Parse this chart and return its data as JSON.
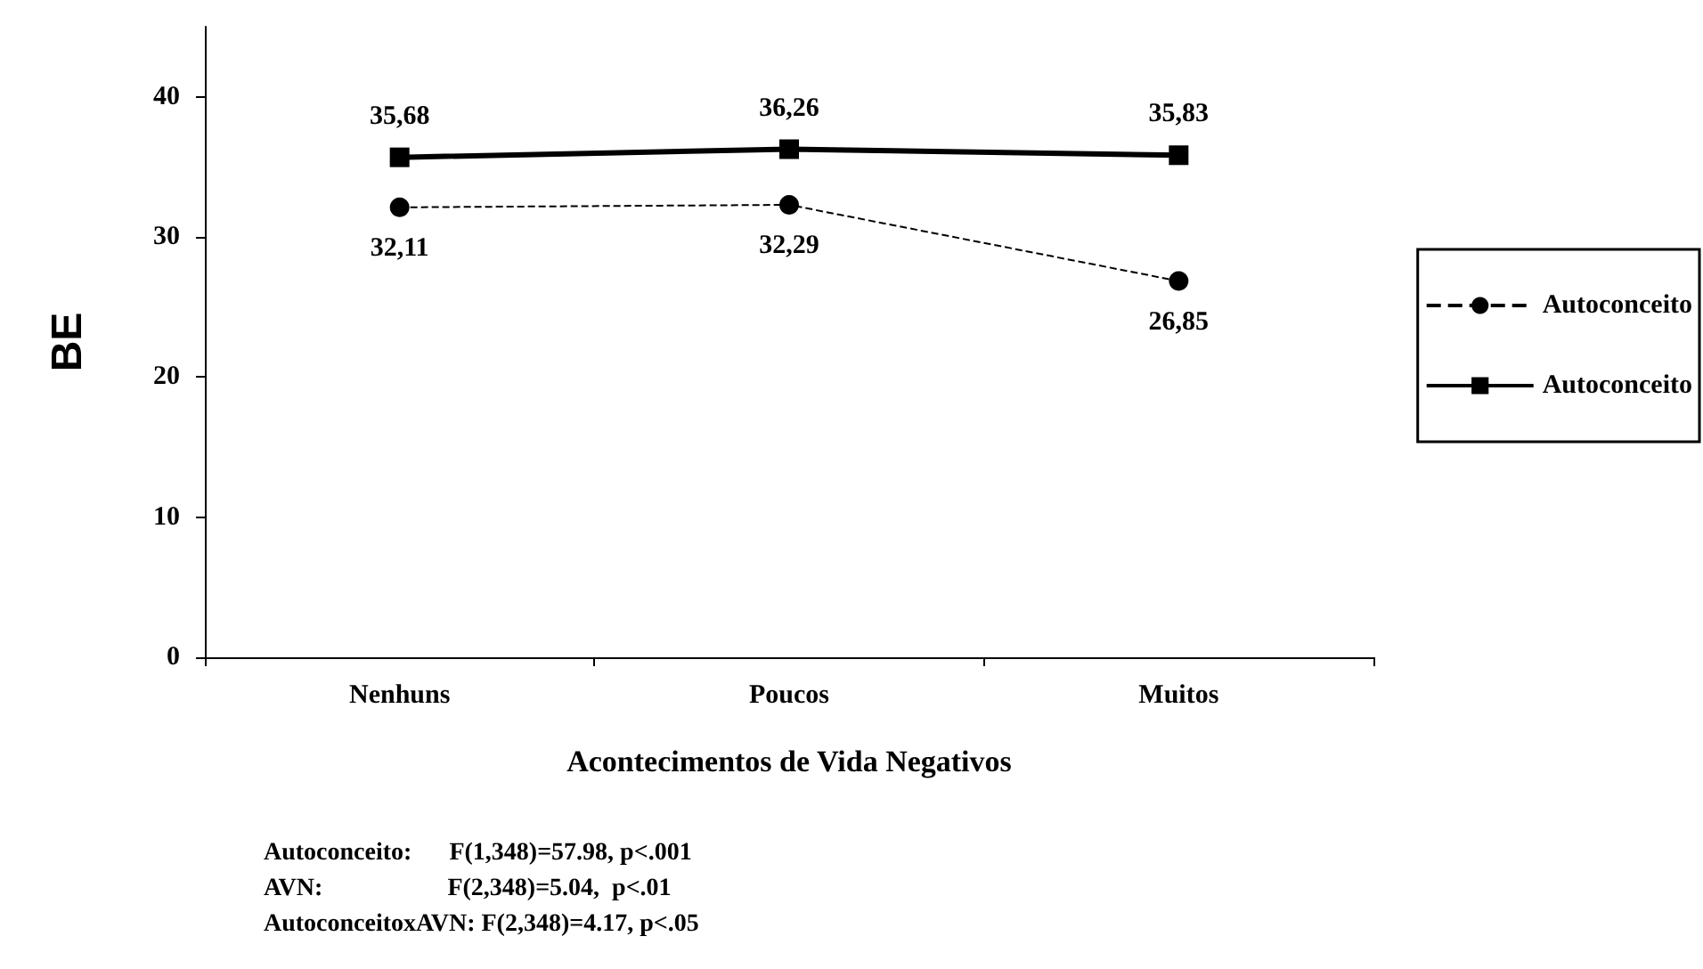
{
  "chart_data": {
    "type": "line",
    "xlabel": "Acontecimentos de Vida Negativos",
    "ylabel": "BE",
    "categories": [
      "Nenhuns",
      "Poucos",
      "Muitos"
    ],
    "series": [
      {
        "name": "Autoconceito",
        "color": "#000000",
        "values": [
          32.11,
          32.29,
          26.85
        ],
        "value_labels": [
          "32,11",
          "32,29",
          "26,85"
        ],
        "marker": "circle",
        "line_style": "dashed"
      },
      {
        "name": "Autoconceito",
        "color": "#000000",
        "values": [
          35.68,
          36.26,
          35.83
        ],
        "value_labels": [
          "35,68",
          "36,26",
          "35,83"
        ],
        "marker": "square",
        "line_style": "solid"
      }
    ],
    "ylim": [
      0,
      45
    ],
    "yticks": [
      0,
      10,
      20,
      30,
      40
    ],
    "grid": false,
    "legend": "right",
    "annotations": [
      "Autoconceito:      F(1,348)=57.98, p<.001",
      "AVN:                    F(2,348)=5.04,  p<.01",
      "AutoconceitoxAVN: F(2,348)=4.17, p<.05"
    ]
  }
}
